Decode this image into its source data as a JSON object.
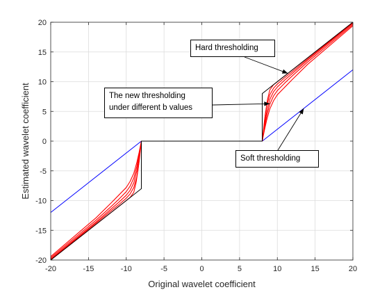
{
  "chart_data": {
    "type": "line",
    "title": "",
    "xlabel": "Original wavelet coefficient",
    "ylabel": "Estimated wavelet coefficient",
    "xlim": [
      -20,
      20
    ],
    "ylim": [
      -20,
      20
    ],
    "xticks": [
      -20,
      -15,
      -10,
      -5,
      0,
      5,
      10,
      15,
      20
    ],
    "yticks": [
      -20,
      -15,
      -10,
      -5,
      0,
      5,
      10,
      15,
      20
    ],
    "xtick_labels": [
      "-20",
      "-15",
      "-10",
      "-5",
      "0",
      "5",
      "10",
      "15",
      "20"
    ],
    "ytick_labels": [
      "-20",
      "-15",
      "-10",
      "-5",
      "0",
      "5",
      "10",
      "15",
      "20"
    ],
    "grid": true,
    "threshold": 8,
    "series": [
      {
        "role": "hard",
        "color": "#000000",
        "x": [
          -20,
          -8,
          -8,
          8,
          8,
          20
        ],
        "y": [
          -20,
          -8,
          0,
          0,
          8,
          20
        ]
      },
      {
        "role": "soft",
        "color": "#0000ff",
        "x": [
          -20,
          -8,
          8,
          20
        ],
        "y": [
          -12,
          0,
          0,
          12
        ]
      },
      {
        "role": "new",
        "color": "#ff0000",
        "x": [
          -20,
          -14,
          -12,
          -11,
          -10,
          -9.5,
          -9,
          -8.7,
          -8.4,
          -8.2,
          -8,
          8,
          8.2,
          8.4,
          8.7,
          9,
          9.5,
          10,
          11,
          12,
          14,
          20
        ],
        "y": [
          -20,
          -14,
          -12,
          -11,
          -10,
          -9.5,
          -8.6,
          -7,
          -4.5,
          -2,
          0,
          0,
          2,
          4.5,
          7,
          8.6,
          9.5,
          10,
          11,
          12,
          14,
          20
        ]
      },
      {
        "role": "new",
        "color": "#ff0000",
        "x": [
          -20,
          -14,
          -12,
          -11,
          -10,
          -9.5,
          -9,
          -8.6,
          -8.3,
          -8,
          8,
          8.3,
          8.6,
          9,
          9.5,
          10,
          11,
          12,
          14,
          20
        ],
        "y": [
          -19.9,
          -13.8,
          -11.7,
          -10.7,
          -9.6,
          -8.9,
          -7.8,
          -6,
          -3.5,
          0,
          0,
          3.5,
          6,
          7.8,
          8.9,
          9.6,
          10.7,
          11.7,
          13.8,
          19.9
        ]
      },
      {
        "role": "new",
        "color": "#ff0000",
        "x": [
          -20,
          -14,
          -12,
          -11,
          -10,
          -9.5,
          -9,
          -8.6,
          -8.3,
          -8,
          8,
          8.3,
          8.6,
          9,
          9.5,
          10,
          11,
          12,
          14,
          20
        ],
        "y": [
          -19.8,
          -13.6,
          -11.4,
          -10.3,
          -9.1,
          -8.3,
          -7,
          -5,
          -2.8,
          0,
          0,
          2.8,
          5,
          7,
          8.3,
          9.1,
          10.3,
          11.4,
          13.6,
          19.8
        ]
      },
      {
        "role": "new",
        "color": "#ff0000",
        "x": [
          -20,
          -14,
          -12,
          -11,
          -10,
          -9.5,
          -9,
          -8.6,
          -8.3,
          -8,
          8,
          8.3,
          8.6,
          9,
          9.5,
          10,
          11,
          12,
          14,
          20
        ],
        "y": [
          -19.6,
          -13.3,
          -11,
          -9.8,
          -8.5,
          -7.6,
          -6.2,
          -4.3,
          -2.3,
          0,
          0,
          2.3,
          4.3,
          6.2,
          7.6,
          8.5,
          9.8,
          11,
          13.3,
          19.6
        ]
      },
      {
        "role": "new",
        "color": "#ff0000",
        "x": [
          -20,
          -14,
          -12,
          -11,
          -10,
          -9.5,
          -9,
          -8.6,
          -8.3,
          -8,
          8,
          8.3,
          8.6,
          9,
          9.5,
          10,
          11,
          12,
          14,
          20
        ],
        "y": [
          -19.4,
          -12.9,
          -10.4,
          -9.1,
          -7.8,
          -6.8,
          -5.4,
          -3.6,
          -1.9,
          0,
          0,
          1.9,
          3.6,
          5.4,
          6.8,
          7.8,
          9.1,
          10.4,
          12.9,
          19.4
        ]
      }
    ],
    "annotations": [
      {
        "name": "annotation-hard-thresholding",
        "lines": [
          "Hard thresholding"
        ],
        "arrow_to": [
          11.4,
          11.4
        ]
      },
      {
        "name": "annotation-new-thresholding",
        "lines": [
          "The new thresholding",
          "under different b values"
        ],
        "arrow_to": [
          9.0,
          6.3
        ]
      },
      {
        "name": "annotation-soft-thresholding",
        "lines": [
          "Soft thresholding"
        ],
        "arrow_to": [
          13.5,
          5.5
        ]
      }
    ]
  }
}
